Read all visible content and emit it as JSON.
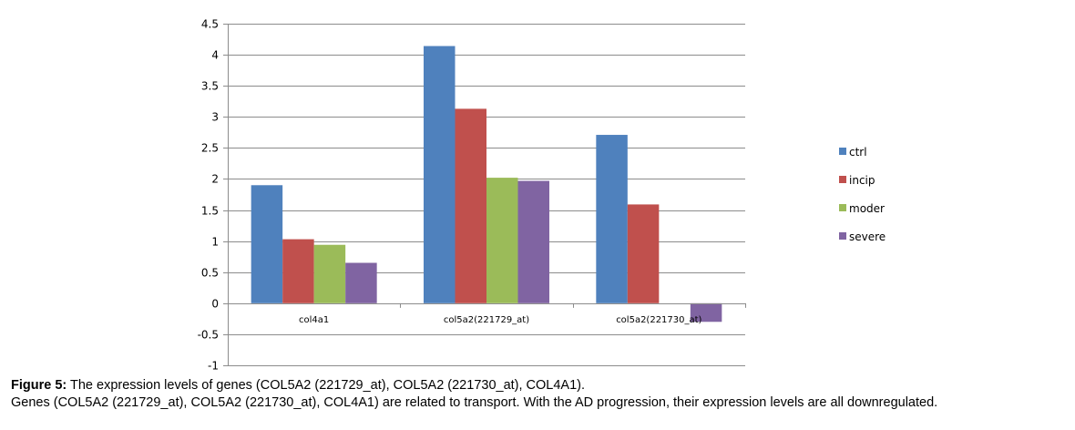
{
  "chart_data": {
    "type": "bar",
    "categories": [
      "col4a1",
      "col5a2(221729_at)",
      "col5a2(221730_at)"
    ],
    "series": [
      {
        "name": "ctrl",
        "color": "#4F81BD",
        "values": [
          1.9,
          4.14,
          2.71
        ]
      },
      {
        "name": "incip",
        "color": "#C0504D",
        "values": [
          1.03,
          3.13,
          1.59
        ]
      },
      {
        "name": "moder",
        "color": "#9BBB59",
        "values": [
          0.94,
          2.02,
          0.0
        ]
      },
      {
        "name": "severe",
        "color": "#8064A2",
        "values": [
          0.65,
          1.97,
          -0.3
        ]
      }
    ],
    "ylim": [
      -1,
      4.5
    ],
    "yticks": [
      "4.5",
      "4",
      "3.5",
      "3",
      "2.5",
      "2",
      "1.5",
      "1",
      "0.5",
      "0",
      "-0.5",
      "-1"
    ],
    "ytick_values": [
      4.5,
      4,
      3.5,
      3,
      2.5,
      2,
      1.5,
      1,
      0.5,
      0,
      -0.5,
      -1
    ],
    "grid": true,
    "legend_position": "right",
    "xlabel": "",
    "ylabel": "",
    "title": ""
  },
  "caption": {
    "label": "Figure 5:",
    "line1": " The expression levels of genes (COL5A2 (221729_at), COL5A2 (221730_at), COL4A1).",
    "line2": "Genes (COL5A2 (221729_at), COL5A2 (221730_at), COL4A1) are related to transport. With the AD progression, their expression levels are all downregulated."
  }
}
